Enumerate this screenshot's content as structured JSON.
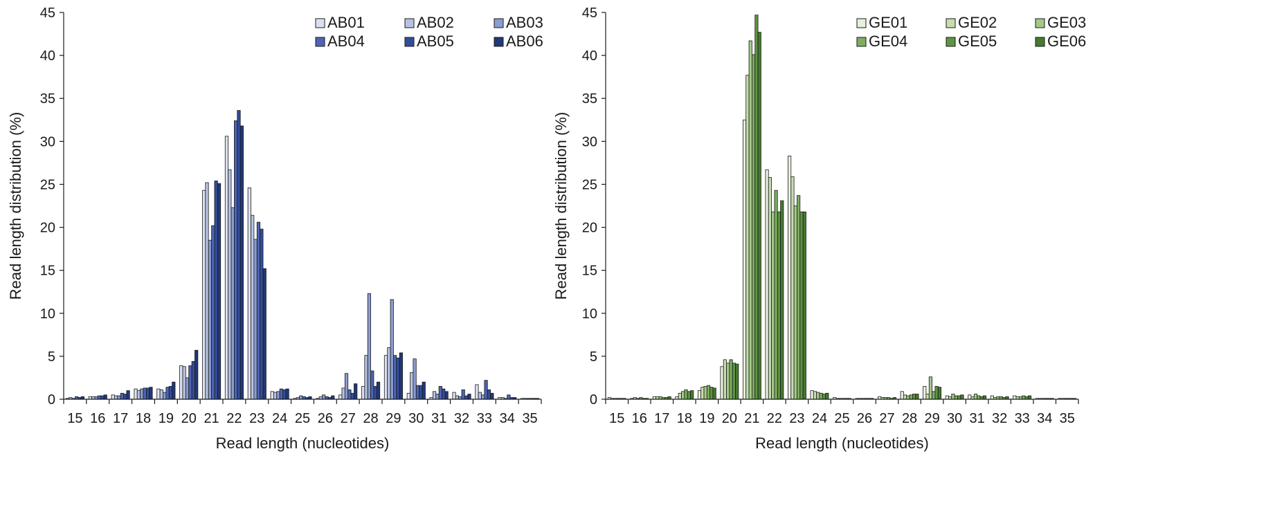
{
  "chart_data": [
    {
      "type": "bar",
      "xlabel": "Read length (nucleotides)",
      "ylabel": "Read length distribution (%)",
      "ylim": [
        0,
        45
      ],
      "yticks": [
        0,
        5,
        10,
        15,
        20,
        25,
        30,
        35,
        40,
        45
      ],
      "grid": false,
      "legend_position": "top-right",
      "categories": [
        "15",
        "16",
        "17",
        "18",
        "19",
        "20",
        "21",
        "22",
        "23",
        "24",
        "25",
        "26",
        "27",
        "28",
        "29",
        "30",
        "31",
        "32",
        "33",
        "34",
        "35"
      ],
      "series": [
        {
          "name": "AB01",
          "color": "#dbe1f0",
          "values": [
            0.1,
            0.3,
            0.5,
            1.2,
            1.2,
            3.9,
            24.3,
            30.6,
            24.6,
            0.9,
            0.1,
            0.1,
            0.5,
            1.5,
            5.1,
            0.7,
            0.2,
            0.8,
            1.7,
            0.2,
            0.1
          ]
        },
        {
          "name": "AB02",
          "color": "#b7c2e1",
          "values": [
            0.2,
            0.3,
            0.4,
            1.0,
            1.1,
            3.8,
            25.2,
            26.7,
            21.4,
            0.8,
            0.2,
            0.3,
            1.3,
            5.1,
            6.0,
            3.1,
            0.9,
            0.4,
            0.8,
            0.2,
            0.1
          ]
        },
        {
          "name": "AB03",
          "color": "#8a9cd0",
          "values": [
            0.1,
            0.3,
            0.4,
            1.2,
            0.8,
            2.5,
            18.5,
            22.3,
            18.6,
            0.9,
            0.4,
            0.5,
            3.0,
            12.3,
            11.6,
            4.7,
            0.6,
            0.3,
            0.5,
            0.1,
            0.1
          ]
        },
        {
          "name": "AB04",
          "color": "#4d65b3",
          "values": [
            0.3,
            0.4,
            0.7,
            1.3,
            1.4,
            3.9,
            20.2,
            32.4,
            20.6,
            1.2,
            0.3,
            0.3,
            1.1,
            3.3,
            5.1,
            1.6,
            1.5,
            1.1,
            2.2,
            0.5,
            0.1
          ]
        },
        {
          "name": "AB05",
          "color": "#334d9c",
          "values": [
            0.2,
            0.4,
            0.6,
            1.3,
            1.5,
            4.4,
            25.4,
            33.6,
            19.8,
            1.1,
            0.2,
            0.2,
            0.7,
            1.5,
            4.8,
            1.6,
            1.2,
            0.4,
            1.1,
            0.2,
            0.1
          ]
        },
        {
          "name": "AB06",
          "color": "#213978",
          "values": [
            0.3,
            0.5,
            1.0,
            1.4,
            2.0,
            5.7,
            25.1,
            31.8,
            15.2,
            1.2,
            0.3,
            0.4,
            1.8,
            2.0,
            5.4,
            2.0,
            0.9,
            0.6,
            0.7,
            0.2,
            0.1
          ]
        }
      ]
    },
    {
      "type": "bar",
      "xlabel": "Read length (nucleotides)",
      "ylabel": "Read length distribution (%)",
      "ylim": [
        0,
        45
      ],
      "yticks": [
        0,
        5,
        10,
        15,
        20,
        25,
        30,
        35,
        40,
        45
      ],
      "grid": false,
      "legend_position": "top-right",
      "categories": [
        "15",
        "16",
        "17",
        "18",
        "19",
        "20",
        "21",
        "22",
        "23",
        "24",
        "25",
        "26",
        "27",
        "28",
        "29",
        "30",
        "31",
        "32",
        "33",
        "34",
        "35"
      ],
      "series": [
        {
          "name": "GE01",
          "color": "#e6f0dc",
          "values": [
            0.2,
            0.1,
            0.3,
            0.3,
            1.0,
            3.8,
            32.5,
            26.7,
            28.3,
            1.0,
            0.2,
            0.1,
            0.3,
            0.9,
            1.5,
            0.4,
            0.5,
            0.4,
            0.4,
            0.1,
            0.1
          ]
        },
        {
          "name": "GE02",
          "color": "#c6ddb0",
          "values": [
            0.1,
            0.2,
            0.3,
            0.7,
            1.4,
            4.6,
            37.7,
            25.8,
            25.9,
            0.9,
            0.1,
            0.1,
            0.2,
            0.5,
            0.6,
            0.3,
            0.3,
            0.2,
            0.3,
            0.1,
            0.1
          ]
        },
        {
          "name": "GE03",
          "color": "#a3c888",
          "values": [
            0.1,
            0.1,
            0.3,
            0.9,
            1.5,
            4.2,
            41.7,
            21.8,
            22.5,
            0.8,
            0.1,
            0.1,
            0.2,
            0.4,
            2.6,
            0.6,
            0.6,
            0.3,
            0.3,
            0.1,
            0.1
          ]
        },
        {
          "name": "GE04",
          "color": "#7dae5f",
          "values": [
            0.1,
            0.2,
            0.2,
            1.1,
            1.6,
            4.6,
            40.1,
            24.3,
            23.7,
            0.7,
            0.1,
            0.1,
            0.2,
            0.5,
            0.9,
            0.4,
            0.4,
            0.3,
            0.4,
            0.1,
            0.1
          ]
        },
        {
          "name": "GE05",
          "color": "#5e9443",
          "values": [
            0.1,
            0.1,
            0.2,
            0.9,
            1.4,
            4.2,
            44.7,
            21.8,
            21.8,
            0.6,
            0.1,
            0.1,
            0.1,
            0.6,
            1.5,
            0.4,
            0.3,
            0.2,
            0.3,
            0.1,
            0.1
          ]
        },
        {
          "name": "GE06",
          "color": "#457a30",
          "values": [
            0.1,
            0.1,
            0.3,
            1.0,
            1.3,
            4.1,
            42.7,
            23.1,
            21.8,
            0.7,
            0.1,
            0.1,
            0.2,
            0.6,
            1.4,
            0.5,
            0.4,
            0.3,
            0.4,
            0.1,
            0.1
          ]
        }
      ]
    }
  ]
}
